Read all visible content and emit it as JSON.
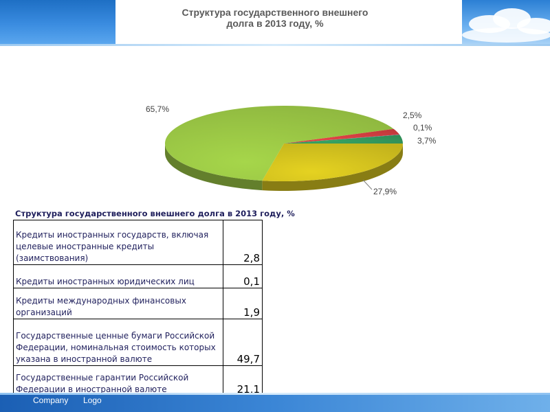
{
  "chart_data": {
    "type": "pie",
    "title_line1": "Структура государственного внешнего",
    "title_line2": "долга в 2013 году, %",
    "slices": [
      {
        "label": "65,7%",
        "value": 65.7,
        "color": "#8db53f"
      },
      {
        "label": "2,5%",
        "value": 2.5,
        "color": "#c0393b"
      },
      {
        "label": "0,1%",
        "value": 0.1,
        "color": "#5a7fb0"
      },
      {
        "label": "3,7%",
        "value": 3.7,
        "color": "#2f8a55"
      },
      {
        "label": "27,9%",
        "value": 27.9,
        "color": "#c2b21c"
      }
    ]
  },
  "table": {
    "caption": "Структура государственного внешнего долга в 2013 году, %",
    "rows": [
      {
        "label": "Кредиты иностранных государств, включая целевые иностранные кредиты (заимствования)",
        "value": "2,8"
      },
      {
        "label": "Кредиты иностранных юридических лиц",
        "value": "0,1"
      },
      {
        "label": "Кредиты международных финансовых организаций",
        "value": "1,9"
      },
      {
        "label": "Государственные ценные бумаги Российской Федерации, номинальная стоимость которых указана в иностранной валюте",
        "value": "49,7"
      },
      {
        "label": "Государственные гарантии Российской Федерации в иностранной валюте",
        "value": "21,1"
      }
    ]
  },
  "footer": {
    "company": "Company",
    "logo": "Logo"
  }
}
